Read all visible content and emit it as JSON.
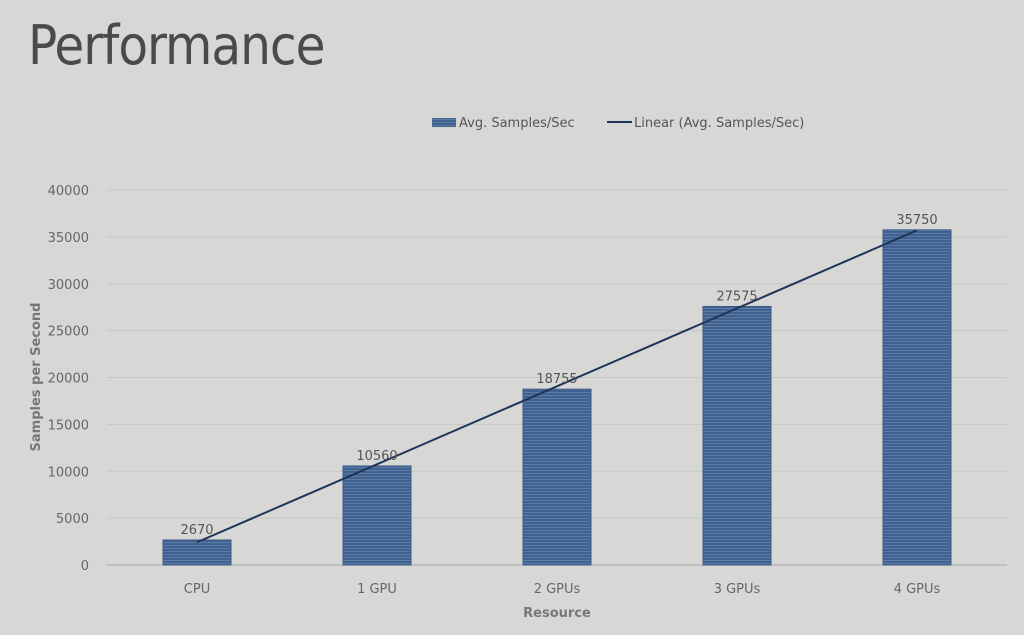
{
  "slide": {
    "title": "Performance"
  },
  "chart_data": {
    "type": "bar",
    "categories": [
      "CPU",
      "1 GPU",
      "2 GPUs",
      "3 GPUs",
      "4 GPUs"
    ],
    "series": [
      {
        "name": "Avg. Samples/Sec",
        "values": [
          2670,
          10560,
          18755,
          27575,
          35750
        ]
      }
    ],
    "trendline": {
      "name": "Linear (Avg. Samples/Sec)",
      "type": "linear"
    },
    "data_labels": [
      "2670",
      "10560",
      "18755",
      "27575",
      "35750"
    ],
    "xlabel": "Resource",
    "ylabel": "Samples per Second",
    "ylim": [
      0,
      40000
    ],
    "yticks": [
      0,
      5000,
      10000,
      15000,
      20000,
      25000,
      30000,
      35000,
      40000
    ],
    "grid": true,
    "legend_position": "top",
    "colors": {
      "bar": "#3d5f8e",
      "trend": "#1f3558",
      "grid": "#c6c7c5",
      "axis": "#a8a9a7"
    }
  }
}
